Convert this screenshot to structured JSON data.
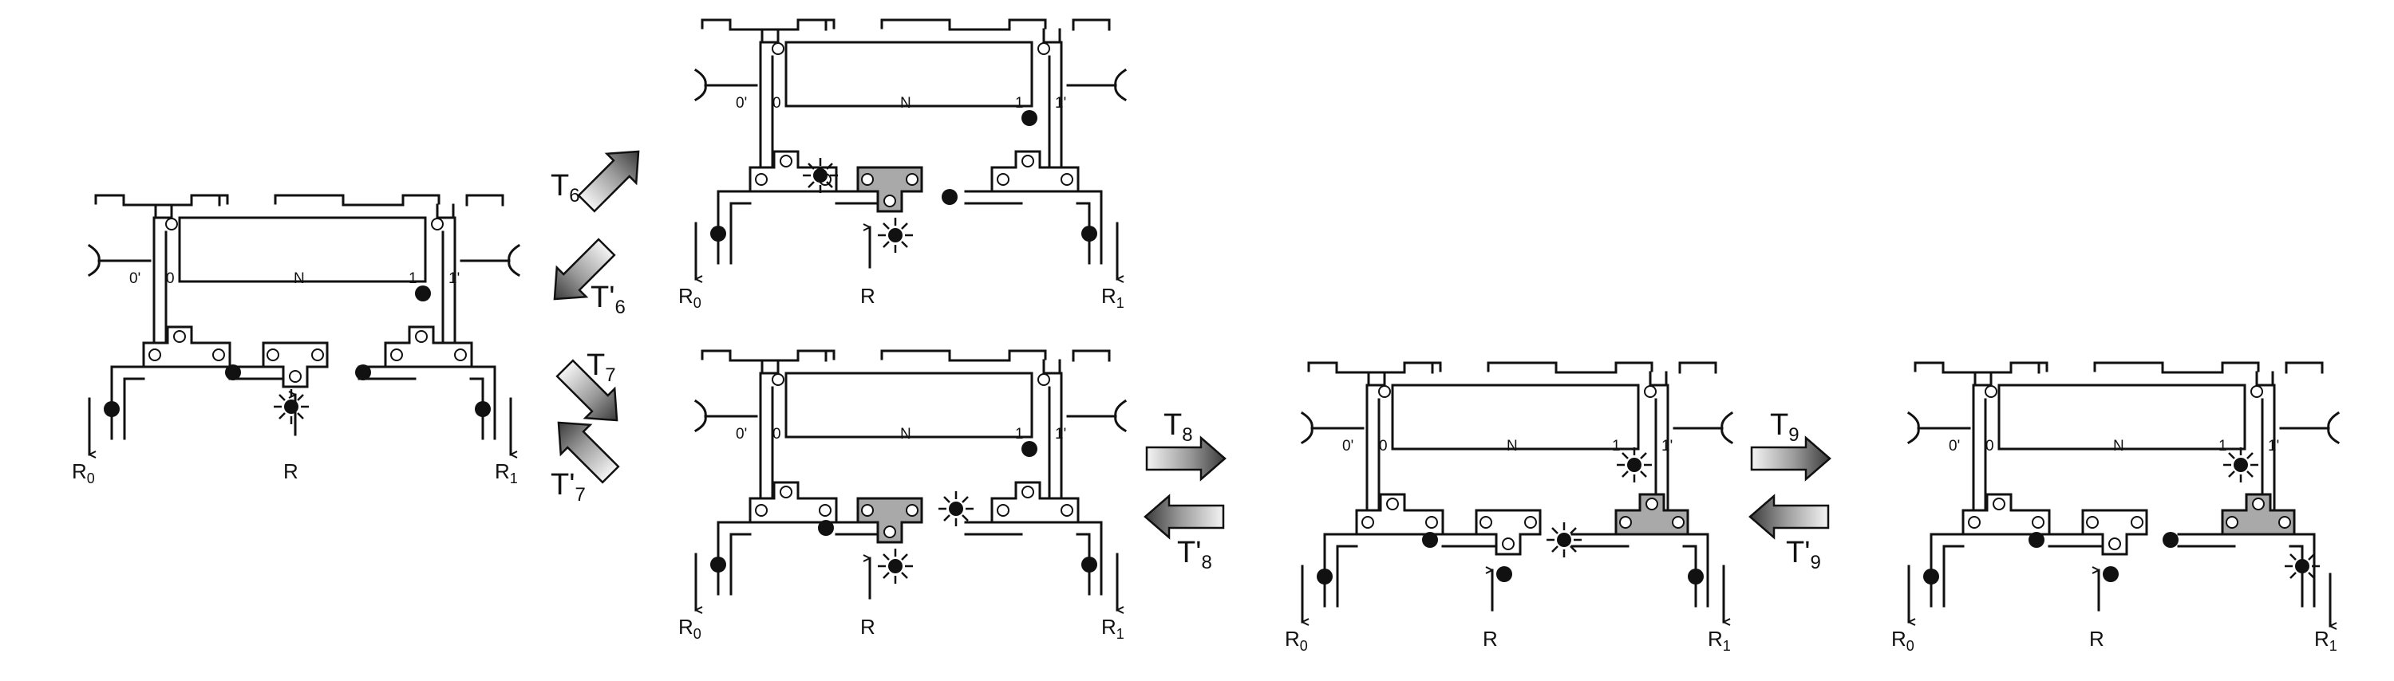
{
  "colors": {
    "line": "#111111",
    "shaded": "#a9a9a9",
    "arrow_dark": "#3a3a3a",
    "arrow_light": "#f2f2f2"
  },
  "labels": {
    "port0p": "0'",
    "port0": "0",
    "N": "N",
    "port1": "1",
    "port1p": "1'",
    "R": "R",
    "R0_main": "R",
    "R0_sub": "0",
    "R1_main": "R",
    "R1_sub": "1"
  },
  "transitions": [
    {
      "id": "T6",
      "main": "T",
      "sub": "6"
    },
    {
      "id": "T6p",
      "main": "T'",
      "sub": "6"
    },
    {
      "id": "T7",
      "main": "T",
      "sub": "7"
    },
    {
      "id": "T7p",
      "main": "T'",
      "sub": "7"
    },
    {
      "id": "T8",
      "main": "T",
      "sub": "8"
    },
    {
      "id": "T8p",
      "main": "T'",
      "sub": "8"
    },
    {
      "id": "T9",
      "main": "T",
      "sub": "9"
    },
    {
      "id": "T9p",
      "main": "T'",
      "sub": "9"
    }
  ],
  "configurations": [
    {
      "id": "config-1",
      "shaded_junction": "none",
      "tokens": [
        "left-output",
        "bus-left",
        "bus-right",
        "right-column",
        "right-output"
      ],
      "active_tokens": [
        "R-input"
      ]
    },
    {
      "id": "config-2",
      "shaded_junction": "middle",
      "tokens": [
        "left-output",
        "bus-right",
        "right-column",
        "right-output"
      ],
      "active_tokens": [
        "bus-left",
        "R-input"
      ]
    },
    {
      "id": "config-3",
      "shaded_junction": "middle",
      "tokens": [
        "left-output",
        "bus-left",
        "right-column",
        "right-output"
      ],
      "active_tokens": [
        "bus-right",
        "R-input"
      ]
    },
    {
      "id": "config-4",
      "shaded_junction": "right",
      "tokens": [
        "left-output",
        "bus-left",
        "middle-output",
        "right-output"
      ],
      "active_tokens": [
        "bus-right",
        "right-column"
      ]
    },
    {
      "id": "config-5",
      "shaded_junction": "right",
      "tokens": [
        "left-output",
        "bus-left",
        "bus-right",
        "middle-output"
      ],
      "active_tokens": [
        "right-column",
        "right-output"
      ]
    }
  ]
}
